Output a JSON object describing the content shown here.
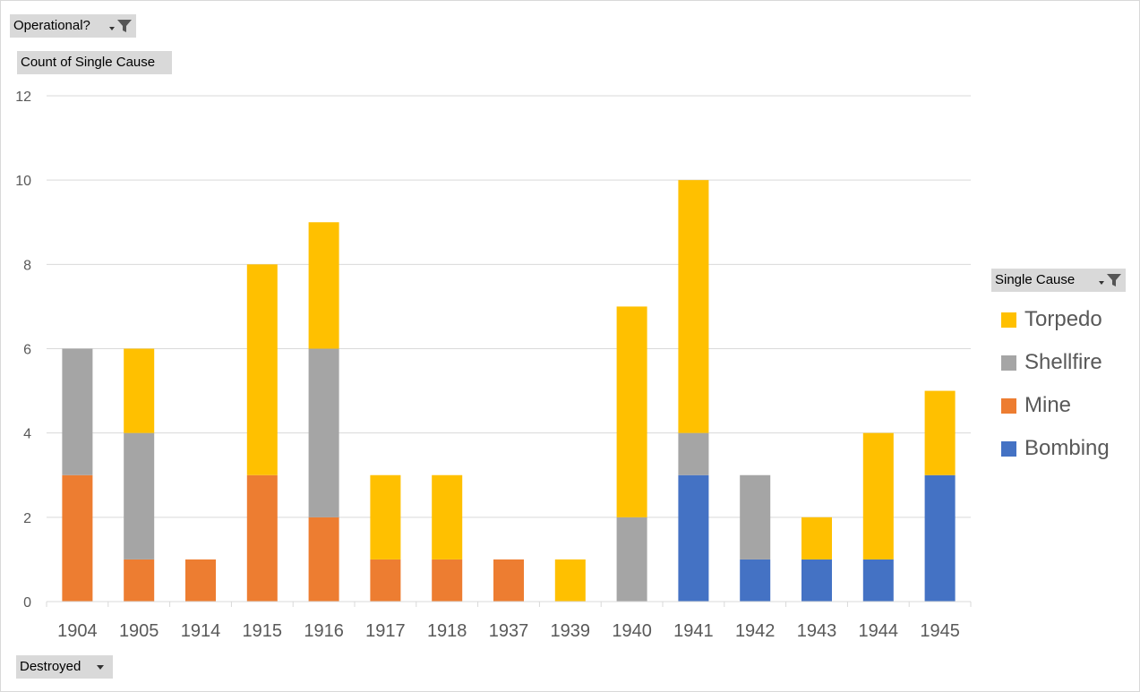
{
  "filters": {
    "operational": {
      "label": "Operational?",
      "icon": "funnel-icon"
    },
    "value_field": {
      "label": "Count of Single Cause"
    },
    "legend_field": {
      "label": "Single Cause",
      "icon": "funnel-icon"
    },
    "axis_field": {
      "label": "Destroyed"
    }
  },
  "colors": {
    "Torpedo": "#FFC000",
    "Shellfire": "#A5A5A5",
    "Mine": "#ED7D31",
    "Bombing": "#4472C4",
    "grid": "#D9D9D9",
    "text": "#595959"
  },
  "legend": {
    "items": [
      "Torpedo",
      "Shellfire",
      "Mine",
      "Bombing"
    ]
  },
  "chart_data": {
    "type": "bar",
    "stacked": true,
    "categories": [
      "1904",
      "1905",
      "1914",
      "1915",
      "1916",
      "1917",
      "1918",
      "1937",
      "1939",
      "1940",
      "1941",
      "1942",
      "1943",
      "1944",
      "1945"
    ],
    "series": [
      {
        "name": "Bombing",
        "values": [
          0,
          0,
          0,
          0,
          0,
          0,
          0,
          0,
          0,
          0,
          3,
          1,
          1,
          1,
          3
        ]
      },
      {
        "name": "Mine",
        "values": [
          3,
          1,
          1,
          3,
          2,
          1,
          1,
          1,
          0,
          0,
          0,
          0,
          0,
          0,
          0
        ]
      },
      {
        "name": "Shellfire",
        "values": [
          3,
          3,
          0,
          0,
          4,
          0,
          0,
          0,
          0,
          2,
          1,
          2,
          0,
          0,
          0
        ]
      },
      {
        "name": "Torpedo",
        "values": [
          0,
          2,
          0,
          5,
          3,
          2,
          2,
          0,
          1,
          5,
          6,
          0,
          1,
          3,
          2
        ]
      }
    ],
    "ylim": [
      0,
      12
    ],
    "yticks": [
      0,
      2,
      4,
      6,
      8,
      10,
      12
    ],
    "grid": true,
    "legend_position": "right"
  }
}
